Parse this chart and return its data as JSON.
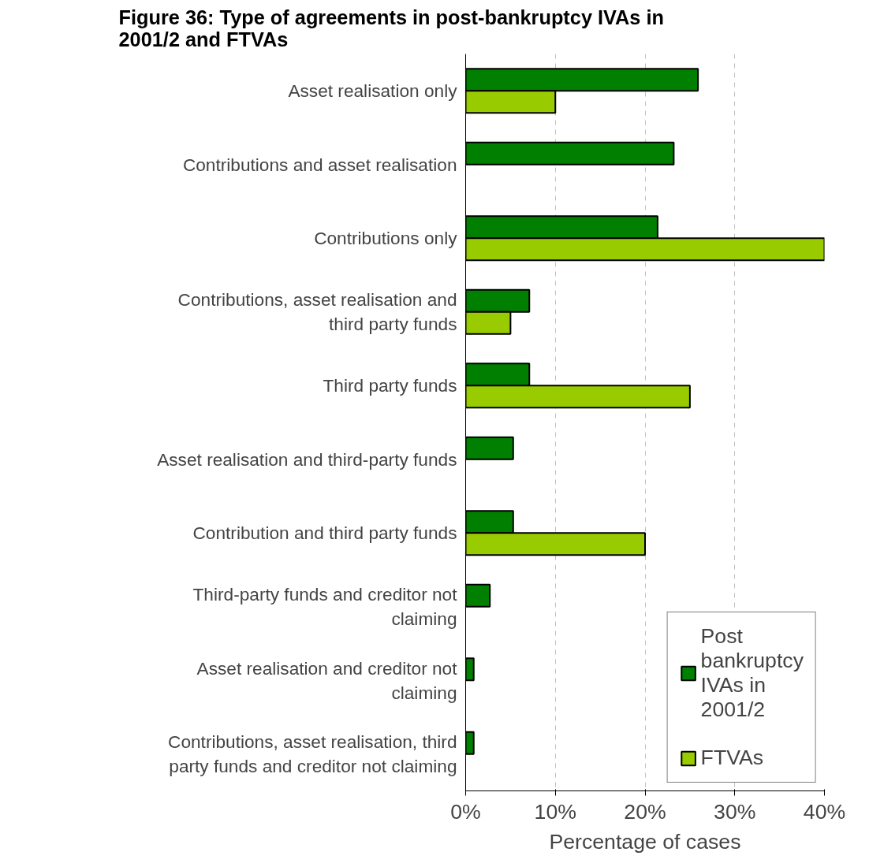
{
  "chart_data": {
    "type": "bar",
    "orientation": "horizontal",
    "title": "Figure 36: Type of agreements in post-bankruptcy IVAs in 2001/2 and FTVAs",
    "xlabel": "Percentage of cases",
    "categories": [
      "Asset realisation only",
      "Contributions and asset realisation",
      "Contributions only",
      "Contributions, asset realisation and third party funds",
      "Third party funds",
      "Asset realisation and third-party funds",
      "Contribution and third party funds",
      "Third-party funds and creditor not claiming",
      "Asset realisation and creditor not claiming",
      "Contributions, asset realisation, third party funds and creditor not claiming"
    ],
    "series": [
      {
        "name": "Post bankruptcy IVAs in 2001/2",
        "color": "#007f00",
        "values": [
          25.9,
          23.2,
          21.4,
          7.1,
          7.1,
          5.3,
          5.3,
          2.7,
          0.9,
          0.9
        ]
      },
      {
        "name": "FTVAs",
        "color": "#99cc00",
        "values": [
          10,
          null,
          40,
          5.0,
          25.0,
          null,
          20.0,
          null,
          null,
          null
        ]
      }
    ],
    "xlim": [
      0,
      40
    ],
    "xticks": [
      {
        "value": 0,
        "label": "0%"
      },
      {
        "value": 10,
        "label": "10%"
      },
      {
        "value": 20,
        "label": "20%"
      },
      {
        "value": 30,
        "label": "30%"
      },
      {
        "value": 40,
        "label": "40%"
      }
    ],
    "grid": "x",
    "legend": "bottom right"
  }
}
